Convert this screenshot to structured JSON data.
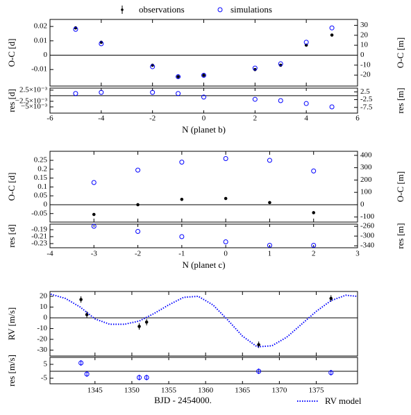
{
  "legend": {
    "observations": "observations",
    "simulations": "simulations"
  },
  "chart_data": [
    {
      "type": "scatter",
      "xlabel": "N (planet b)",
      "ylabel": "O-C [d]",
      "y2label": "O-C [m]",
      "xlim": [
        -6,
        6
      ],
      "xticks": [
        -6,
        -4,
        -2,
        0,
        2,
        4,
        6
      ],
      "ylim": [
        -0.0215,
        0.0249
      ],
      "yticks": [
        -0.01,
        0,
        0.01,
        0.02
      ],
      "y2lim": [
        -31,
        35.9
      ],
      "y2ticks": [
        -20,
        -10,
        0,
        10,
        20,
        30
      ],
      "x": [
        -5,
        -4,
        -2,
        -1,
        0,
        2,
        3,
        4,
        5
      ],
      "series": [
        {
          "name": "observations",
          "color": "#000000",
          "values": [
            0.019,
            0.009,
            -0.007,
            -0.015,
            -0.014,
            -0.01,
            -0.007,
            0.007,
            0.014
          ]
        },
        {
          "name": "simulations",
          "color": "#0000ff",
          "values": [
            0.018,
            0.008,
            -0.008,
            -0.015,
            -0.014,
            -0.009,
            -0.006,
            0.009,
            0.019
          ]
        }
      ],
      "res_ylabel": "res [d]",
      "res_y2label": "res [m]",
      "res_ylim": [
        -0.0078,
        0.0034
      ],
      "res_yticks": [
        {
          "value": -0.005,
          "label": "−5×10⁻³"
        },
        {
          "value": -0.0025,
          "label": "−2.5×10⁻³"
        },
        {
          "value": 0.0025,
          "label": "2.5×10⁻³"
        }
      ],
      "res_y2lim": [
        -11.2,
        4.9
      ],
      "res_y2ticks": [
        -7.5,
        -2.5,
        2.5
      ],
      "residuals": {
        "color": "#0000ff",
        "values": [
          0.001,
          0.0015,
          0.0015,
          0.001,
          -0.0006,
          -0.0016,
          -0.0022,
          -0.0035,
          -0.005
        ]
      }
    },
    {
      "type": "scatter",
      "xlabel": "N (planet c)",
      "ylabel": "O-C [d]",
      "y2label": "O-C [m]",
      "xlim": [
        -4,
        3
      ],
      "xticks": [
        -4,
        -3,
        -2,
        -1,
        0,
        1,
        2,
        3
      ],
      "ylim": [
        -0.098,
        0.301
      ],
      "yticks": [
        -0.05,
        0,
        0.05,
        0.1,
        0.15,
        0.2,
        0.25
      ],
      "y2lim": [
        -141,
        433
      ],
      "y2ticks": [
        -100,
        0,
        100,
        200,
        300,
        400
      ],
      "x": [
        -3,
        -2,
        -1,
        0,
        1,
        2
      ],
      "series": [
        {
          "color": "#000000",
          "values": [
            -0.055,
            0.0,
            0.03,
            0.035,
            0.012,
            -0.045
          ]
        },
        {
          "color": "#0000ff",
          "values": [
            0.125,
            0.195,
            0.24,
            0.26,
            0.25,
            0.19
          ]
        }
      ],
      "res_ylabel": "res [d]",
      "res_y2label": "res [m]",
      "res_ylim": [
        -0.242,
        -0.174
      ],
      "res_yticks": [
        -0.23,
        -0.21,
        -0.19
      ],
      "res_y2lim": [
        -348,
        -251
      ],
      "res_y2ticks": [
        -340,
        -300,
        -260
      ],
      "residuals": {
        "color": "#0000ff",
        "values": [
          -0.18,
          -0.195,
          -0.21,
          -0.225,
          -0.235,
          -0.235
        ]
      }
    },
    {
      "type": "scatter",
      "xlabel": "BJD - 2454000.",
      "ylabel": "RV [m/s]",
      "xlim": [
        1338.9,
        1380.6
      ],
      "xticks": [
        1345,
        1350,
        1355,
        1360,
        1365,
        1370,
        1375
      ],
      "ylim": [
        -35.5,
        24.5
      ],
      "yticks": [
        -30,
        -20,
        -10,
        0,
        10,
        20
      ],
      "x": [
        1343.1,
        1343.9,
        1351,
        1352,
        1367.2,
        1377
      ],
      "series": [
        {
          "color": "#000000",
          "values": [
            17,
            3,
            -8,
            -4,
            -25,
            18
          ],
          "errors": [
            3,
            3,
            3,
            3,
            3,
            3
          ]
        },
        {
          "name": "RV model",
          "color": "#0000ff",
          "line": "dotted",
          "x": [
            1339,
            1341,
            1343,
            1345,
            1347,
            1349,
            1351,
            1353,
            1355,
            1357,
            1359,
            1361,
            1363,
            1365,
            1367,
            1369,
            1371,
            1373,
            1375,
            1377,
            1379,
            1380.5
          ],
          "values": [
            22,
            18,
            10,
            -1,
            -6,
            -6,
            -3,
            4,
            12,
            19,
            20,
            12,
            -2,
            -17,
            -27,
            -26,
            -18,
            -6,
            6,
            16,
            21,
            20
          ]
        }
      ],
      "res_ylabel": "res [m/s]",
      "res_ylim": [
        -9,
        10
      ],
      "res_yticks": [
        -5,
        5
      ],
      "residuals": {
        "color": "#0000ff",
        "values": [
          6,
          -2,
          -4.5,
          -4.5,
          0,
          -1
        ],
        "errors": [
          2,
          2,
          2,
          2,
          2,
          2
        ]
      }
    }
  ]
}
